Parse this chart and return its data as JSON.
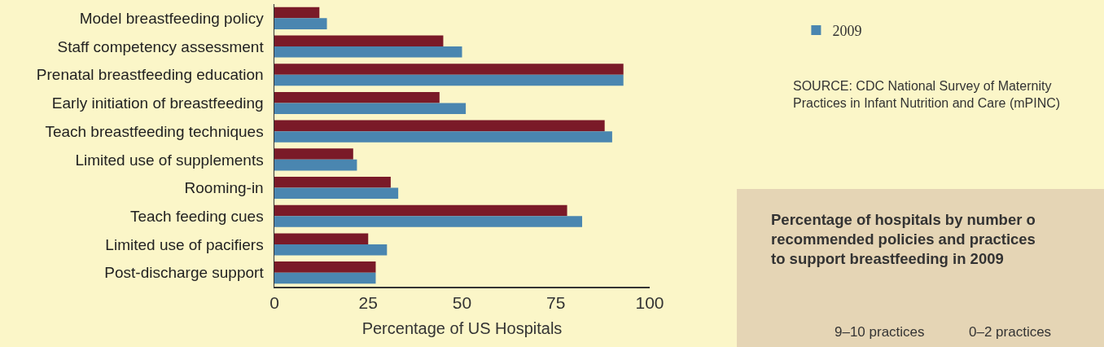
{
  "chart_data": {
    "type": "bar",
    "orientation": "horizontal",
    "xlabel": "Percentage of US Hospitals",
    "categories": [
      "Model breastfeeding policy",
      "Staff competency assessment",
      "Prenatal breastfeeding education",
      "Early initiation of breastfeeding",
      "Teach breastfeeding techniques",
      "Limited use of supplements",
      "Rooming-in",
      "Teach feeding cues",
      "Limited use of pacifiers",
      "Post-discharge support"
    ],
    "series": [
      {
        "color": "#7a1a28",
        "values": [
          12,
          45,
          93,
          44,
          88,
          21,
          31,
          78,
          25,
          27
        ]
      },
      {
        "name": "2009",
        "color": "#4a86b0",
        "values": [
          14,
          50,
          93,
          51,
          90,
          22,
          33,
          82,
          30,
          27
        ]
      }
    ],
    "xlim": [
      0,
      100
    ],
    "xticks": [
      0,
      25,
      50,
      75,
      100
    ],
    "grid": false,
    "legend": "top right",
    "annotations": [
      "SOURCE: CDC National Survey of Maternity\nPractices in Infant Nutrition and Care (mPINC)",
      "Percentage of hospitals by number o\nrecommended policies and practices\nto support breastfeeding in 2009",
      "9–10 practices",
      "0–2 practices"
    ]
  }
}
